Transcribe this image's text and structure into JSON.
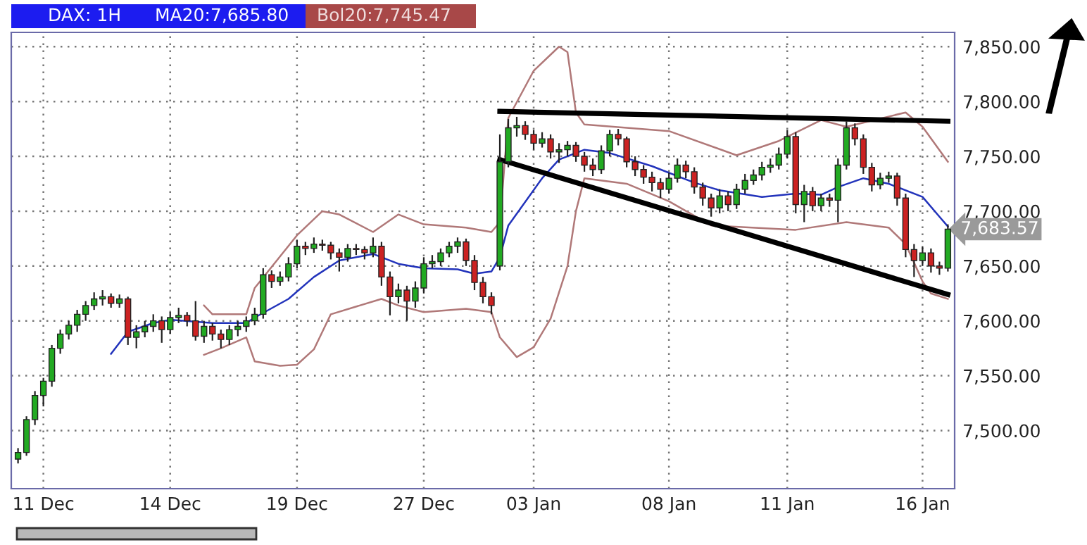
{
  "chart_data": {
    "type": "candlestick",
    "title": "DAX: 1H",
    "annotations": [
      "MA20:7,685.80",
      "Bol20:7,745.47",
      "7,683.57"
    ],
    "categories": [
      null,
      null,
      null,
      "11 Dec",
      null,
      null,
      null,
      null,
      null,
      null,
      null,
      null,
      null,
      null,
      null,
      null,
      null,
      null,
      "14 Dec",
      null,
      null,
      null,
      null,
      null,
      null,
      null,
      null,
      null,
      null,
      null,
      null,
      null,
      null,
      "19 Dec",
      null,
      null,
      null,
      null,
      null,
      null,
      null,
      null,
      null,
      null,
      null,
      null,
      null,
      null,
      "27 Dec",
      null,
      null,
      null,
      null,
      null,
      null,
      null,
      null,
      null,
      null,
      null,
      null,
      "03 Jan",
      null,
      null,
      null,
      null,
      null,
      null,
      null,
      null,
      null,
      null,
      null,
      null,
      null,
      null,
      null,
      "08 Jan",
      null,
      null,
      null,
      null,
      null,
      null,
      null,
      null,
      null,
      null,
      null,
      null,
      null,
      "11 Jan",
      null,
      null,
      null,
      null,
      null,
      null,
      null,
      null,
      null,
      null,
      null,
      null,
      null,
      null,
      null,
      "16 Jan",
      null,
      null,
      null
    ],
    "ohlc": [
      [
        7474,
        7484,
        7470,
        7480
      ],
      [
        7480,
        7513,
        7477,
        7510
      ],
      [
        7510,
        7536,
        7505,
        7532
      ],
      [
        7532,
        7548,
        7522,
        7545
      ],
      [
        7545,
        7578,
        7540,
        7575
      ],
      [
        7575,
        7592,
        7570,
        7588
      ],
      [
        7588,
        7600,
        7583,
        7596
      ],
      [
        7596,
        7610,
        7590,
        7606
      ],
      [
        7606,
        7618,
        7600,
        7614
      ],
      [
        7614,
        7626,
        7610,
        7620
      ],
      [
        7620,
        7628,
        7614,
        7622
      ],
      [
        7622,
        7625,
        7612,
        7616
      ],
      [
        7616,
        7624,
        7612,
        7620
      ],
      [
        7620,
        7622,
        7578,
        7585
      ],
      [
        7585,
        7596,
        7575,
        7590
      ],
      [
        7590,
        7600,
        7585,
        7595
      ],
      [
        7595,
        7606,
        7590,
        7600
      ],
      [
        7600,
        7604,
        7580,
        7592
      ],
      [
        7592,
        7608,
        7588,
        7603
      ],
      [
        7603,
        7612,
        7598,
        7605
      ],
      [
        7605,
        7608,
        7595,
        7600
      ],
      [
        7600,
        7618,
        7582,
        7586
      ],
      [
        7586,
        7600,
        7580,
        7595
      ],
      [
        7595,
        7598,
        7582,
        7588
      ],
      [
        7588,
        7592,
        7575,
        7583
      ],
      [
        7583,
        7596,
        7578,
        7592
      ],
      [
        7592,
        7600,
        7586,
        7595
      ],
      [
        7595,
        7604,
        7590,
        7600
      ],
      [
        7600,
        7612,
        7596,
        7606
      ],
      [
        7606,
        7648,
        7602,
        7642
      ],
      [
        7642,
        7646,
        7630,
        7636
      ],
      [
        7636,
        7645,
        7632,
        7640
      ],
      [
        7640,
        7658,
        7636,
        7652
      ],
      [
        7652,
        7674,
        7648,
        7668
      ],
      [
        7668,
        7672,
        7660,
        7666
      ],
      [
        7666,
        7676,
        7662,
        7670
      ],
      [
        7670,
        7674,
        7664,
        7669
      ],
      [
        7669,
        7672,
        7656,
        7662
      ],
      [
        7662,
        7666,
        7645,
        7658
      ],
      [
        7658,
        7670,
        7654,
        7666
      ],
      [
        7666,
        7670,
        7660,
        7665
      ],
      [
        7665,
        7668,
        7656,
        7662
      ],
      [
        7662,
        7676,
        7658,
        7668
      ],
      [
        7668,
        7672,
        7632,
        7640
      ],
      [
        7640,
        7645,
        7605,
        7622
      ],
      [
        7622,
        7634,
        7616,
        7628
      ],
      [
        7628,
        7632,
        7600,
        7618
      ],
      [
        7618,
        7636,
        7612,
        7630
      ],
      [
        7630,
        7658,
        7625,
        7652
      ],
      [
        7652,
        7660,
        7648,
        7654
      ],
      [
        7654,
        7666,
        7650,
        7662
      ],
      [
        7662,
        7672,
        7658,
        7668
      ],
      [
        7668,
        7676,
        7662,
        7672
      ],
      [
        7672,
        7675,
        7650,
        7655
      ],
      [
        7655,
        7660,
        7628,
        7635
      ],
      [
        7635,
        7640,
        7616,
        7622
      ],
      [
        7622,
        7626,
        7606,
        7614
      ],
      [
        7650,
        7770,
        7646,
        7745
      ],
      [
        7745,
        7784,
        7740,
        7776
      ],
      [
        7776,
        7786,
        7768,
        7778
      ],
      [
        7778,
        7782,
        7765,
        7770
      ],
      [
        7770,
        7774,
        7756,
        7762
      ],
      [
        7762,
        7772,
        7758,
        7766
      ],
      [
        7766,
        7770,
        7748,
        7754
      ],
      [
        7754,
        7762,
        7744,
        7756
      ],
      [
        7756,
        7764,
        7750,
        7760
      ],
      [
        7760,
        7763,
        7745,
        7750
      ],
      [
        7750,
        7754,
        7736,
        7742
      ],
      [
        7742,
        7748,
        7732,
        7738
      ],
      [
        7738,
        7760,
        7734,
        7755
      ],
      [
        7755,
        7774,
        7750,
        7770
      ],
      [
        7770,
        7775,
        7760,
        7766
      ],
      [
        7766,
        7768,
        7740,
        7745
      ],
      [
        7745,
        7750,
        7732,
        7738
      ],
      [
        7738,
        7742,
        7725,
        7731
      ],
      [
        7731,
        7736,
        7718,
        7726
      ],
      [
        7726,
        7730,
        7712,
        7720
      ],
      [
        7720,
        7735,
        7716,
        7730
      ],
      [
        7730,
        7748,
        7726,
        7742
      ],
      [
        7742,
        7746,
        7730,
        7736
      ],
      [
        7736,
        7740,
        7716,
        7722
      ],
      [
        7722,
        7726,
        7705,
        7712
      ],
      [
        7712,
        7716,
        7695,
        7703
      ],
      [
        7703,
        7720,
        7698,
        7714
      ],
      [
        7714,
        7718,
        7700,
        7706
      ],
      [
        7706,
        7725,
        7702,
        7720
      ],
      [
        7720,
        7734,
        7716,
        7728
      ],
      [
        7728,
        7738,
        7724,
        7733
      ],
      [
        7733,
        7745,
        7728,
        7740
      ],
      [
        7740,
        7748,
        7735,
        7742
      ],
      [
        7742,
        7758,
        7738,
        7752
      ],
      [
        7752,
        7774,
        7748,
        7768
      ],
      [
        7768,
        7772,
        7698,
        7706
      ],
      [
        7706,
        7724,
        7690,
        7718
      ],
      [
        7718,
        7722,
        7700,
        7705
      ],
      [
        7705,
        7716,
        7700,
        7712
      ],
      [
        7712,
        7716,
        7704,
        7710
      ],
      [
        7710,
        7748,
        7690,
        7742
      ],
      [
        7742,
        7782,
        7738,
        7776
      ],
      [
        7776,
        7780,
        7760,
        7766
      ],
      [
        7766,
        7770,
        7734,
        7740
      ],
      [
        7740,
        7744,
        7718,
        7724
      ],
      [
        7724,
        7735,
        7720,
        7730
      ],
      [
        7730,
        7736,
        7726,
        7732
      ],
      [
        7732,
        7735,
        7705,
        7712
      ],
      [
        7712,
        7716,
        7658,
        7665
      ],
      [
        7665,
        7670,
        7640,
        7655
      ],
      [
        7655,
        7668,
        7650,
        7662
      ],
      [
        7662,
        7666,
        7644,
        7650
      ],
      [
        7650,
        7654,
        7642,
        7648
      ],
      [
        7648,
        7688,
        7645,
        7683.57
      ]
    ],
    "colors": [
      "#22aa22",
      "#22aa22",
      "#22aa22",
      "#22aa22",
      "#22aa22",
      "#22aa22",
      "#22aa22",
      "#22aa22",
      "#22aa22",
      "#22aa22",
      "#22aa22",
      "#cc2222",
      "#22aa22",
      "#cc2222",
      "#22aa22",
      "#22aa22",
      "#22aa22",
      "#cc2222",
      "#22aa22",
      "#22aa22",
      "#cc2222",
      "#cc2222",
      "#22aa22",
      "#cc2222",
      "#cc2222",
      "#22aa22",
      "#22aa22",
      "#22aa22",
      "#22aa22",
      "#22aa22",
      "#cc2222",
      "#22aa22",
      "#22aa22",
      "#22aa22",
      "#cc2222",
      "#22aa22",
      "#cc2222",
      "#cc2222",
      "#cc2222",
      "#22aa22",
      "#cc2222",
      "#cc2222",
      "#22aa22",
      "#cc2222",
      "#cc2222",
      "#22aa22",
      "#cc2222",
      "#22aa22",
      "#22aa22",
      "#22aa22",
      "#22aa22",
      "#22aa22",
      "#22aa22",
      "#cc2222",
      "#cc2222",
      "#cc2222",
      "#cc2222",
      "#22aa22",
      "#22aa22",
      "#22aa22",
      "#cc2222",
      "#cc2222",
      "#22aa22",
      "#cc2222",
      "#22aa22",
      "#22aa22",
      "#cc2222",
      "#cc2222",
      "#cc2222",
      "#22aa22",
      "#22aa22",
      "#cc2222",
      "#cc2222",
      "#cc2222",
      "#cc2222",
      "#cc2222",
      "#cc2222",
      "#22aa22",
      "#22aa22",
      "#cc2222",
      "#cc2222",
      "#cc2222",
      "#cc2222",
      "#22aa22",
      "#cc2222",
      "#22aa22",
      "#22aa22",
      "#22aa22",
      "#22aa22",
      "#22aa22",
      "#22aa22",
      "#22aa22",
      "#cc2222",
      "#22aa22",
      "#cc2222",
      "#22aa22",
      "#cc2222",
      "#22aa22",
      "#22aa22",
      "#cc2222",
      "#cc2222",
      "#cc2222",
      "#22aa22",
      "#22aa22",
      "#cc2222",
      "#cc2222",
      "#cc2222",
      "#22aa22",
      "#cc2222",
      "#cc2222",
      "#22aa22"
    ],
    "series": [
      {
        "type": "line",
        "color": "#2233bb",
        "values": [
          null,
          null,
          null,
          null,
          null,
          null,
          null,
          null,
          null,
          null,
          null,
          7570,
          null,
          7590,
          null,
          null,
          7598,
          null,
          7601,
          null,
          null,
          null,
          null,
          7598,
          null,
          null,
          null,
          7598,
          7603,
          null,
          null,
          null,
          7620,
          null,
          null,
          7640,
          null,
          null,
          7655,
          null,
          null,
          null,
          7661,
          null,
          null,
          7652,
          null,
          null,
          7648,
          null,
          null,
          null,
          7647,
          null,
          7643,
          null,
          7645,
          7658,
          7687,
          null,
          null,
          null,
          7730,
          null,
          7747,
          null,
          null,
          7756,
          null,
          null,
          7753,
          null,
          null,
          null,
          null,
          7741,
          null,
          null,
          null,
          null,
          7726,
          null,
          null,
          7719,
          null,
          null,
          null,
          null,
          7713,
          null,
          null,
          null,
          7716,
          null,
          null,
          7715,
          null,
          7722,
          null,
          null,
          7730,
          null,
          null,
          7725,
          null,
          null,
          null,
          7713,
          null,
          7695,
          7686
        ]
      },
      {
        "type": "line",
        "color": "#b07878",
        "values": [
          null,
          null,
          null,
          null,
          null,
          null,
          null,
          null,
          null,
          null,
          null,
          null,
          null,
          null,
          null,
          null,
          null,
          null,
          null,
          null,
          null,
          null,
          7614,
          7606,
          null,
          null,
          null,
          7606,
          7630,
          null,
          null,
          null,
          null,
          7678,
          null,
          null,
          7700,
          null,
          7697,
          null,
          null,
          null,
          7681,
          null,
          null,
          7697,
          null,
          null,
          7688,
          null,
          null,
          null,
          null,
          7685,
          null,
          null,
          7681,
          7690,
          7785,
          null,
          null,
          7828,
          null,
          null,
          7850,
          7845,
          7790,
          7779,
          null,
          null,
          null,
          null,
          null,
          null,
          null,
          null,
          null,
          7773,
          null,
          null,
          null,
          null,
          null,
          null,
          null,
          7751,
          null,
          null,
          null,
          null,
          7764,
          null,
          null,
          null,
          null,
          7783,
          null,
          null,
          7777,
          null,
          null,
          null,
          null,
          null,
          null,
          7790,
          null,
          7777,
          null,
          null,
          7745
        ]
      },
      {
        "type": "line",
        "color": "#b07878",
        "values": [
          null,
          null,
          null,
          null,
          null,
          null,
          null,
          null,
          null,
          null,
          null,
          null,
          null,
          null,
          null,
          null,
          null,
          null,
          null,
          null,
          null,
          null,
          7569,
          null,
          7575,
          null,
          null,
          7585,
          7563,
          null,
          null,
          7559,
          null,
          7560,
          null,
          7574,
          null,
          7606,
          null,
          null,
          null,
          null,
          null,
          7620,
          null,
          7614,
          null,
          null,
          7608,
          null,
          null,
          null,
          null,
          7611,
          null,
          null,
          7608,
          7585,
          null,
          7567,
          null,
          7576,
          null,
          7602,
          null,
          7650,
          7700,
          7730,
          null,
          null,
          null,
          null,
          7725,
          null,
          null,
          null,
          null,
          7709,
          null,
          null,
          null,
          null,
          7687,
          null,
          null,
          null,
          null,
          null,
          null,
          null,
          null,
          null,
          7683,
          null,
          null,
          null,
          null,
          null,
          7690,
          null,
          null,
          null,
          null,
          7685,
          null,
          7670,
          null,
          7636,
          7625,
          null,
          7620
        ]
      },
      {
        "type": "line",
        "color": "#000000",
        "values": [
          null,
          null,
          null,
          null,
          null,
          null,
          null,
          null,
          null,
          null,
          null,
          null,
          null,
          null,
          null,
          null,
          null,
          null,
          null,
          null,
          null,
          null,
          null,
          null,
          null,
          null,
          null,
          null,
          null,
          null,
          null,
          null,
          null,
          null,
          null,
          null,
          null,
          null,
          null,
          null,
          null,
          null,
          null,
          null,
          null,
          null,
          null,
          null,
          null,
          null,
          null,
          null,
          null,
          null,
          null,
          null,
          null,
          7791,
          null,
          null,
          null,
          null,
          null,
          null,
          null,
          null,
          null,
          null,
          null,
          null,
          null,
          null,
          null,
          null,
          null,
          null,
          null,
          null,
          null,
          null,
          null,
          null,
          null,
          null,
          null,
          null,
          null,
          null,
          null,
          null,
          null,
          null,
          null,
          null,
          null,
          null,
          null,
          null,
          null,
          null,
          null,
          null,
          null,
          null,
          null,
          null,
          null,
          null,
          null,
          null,
          7782
        ]
      },
      {
        "type": "line",
        "color": "#000000",
        "values": [
          null,
          null,
          null,
          null,
          null,
          null,
          null,
          null,
          null,
          null,
          null,
          null,
          null,
          null,
          null,
          null,
          null,
          null,
          null,
          null,
          null,
          null,
          null,
          null,
          null,
          null,
          null,
          null,
          null,
          null,
          null,
          null,
          null,
          null,
          null,
          null,
          null,
          null,
          null,
          null,
          null,
          null,
          null,
          null,
          null,
          null,
          null,
          null,
          null,
          null,
          null,
          null,
          null,
          null,
          null,
          null,
          null,
          7747,
          null,
          null,
          null,
          null,
          null,
          null,
          null,
          null,
          null,
          null,
          null,
          null,
          null,
          null,
          null,
          null,
          null,
          null,
          null,
          null,
          null,
          null,
          null,
          null,
          null,
          null,
          null,
          null,
          null,
          null,
          null,
          null,
          null,
          null,
          null,
          null,
          null,
          null,
          null,
          null,
          null,
          null,
          null,
          null,
          null,
          null,
          null,
          null,
          null,
          null,
          null,
          null,
          7624
        ]
      }
    ],
    "ylim": [
      7447,
      7863
    ],
    "yticks": [
      {
        "value": 7500,
        "label": "7,500.00"
      },
      {
        "value": 7550,
        "label": "7,550.00"
      },
      {
        "value": 7600,
        "label": "7,600.00"
      },
      {
        "value": 7650,
        "label": "7,650.00"
      },
      {
        "value": 7700,
        "label": "7,700.00"
      },
      {
        "value": 7750,
        "label": "7,750.00"
      },
      {
        "value": 7800,
        "label": "7,800.00"
      },
      {
        "value": 7850,
        "label": "7,850.00"
      }
    ],
    "grid": true,
    "line_style": "solid",
    "marker": "none"
  }
}
